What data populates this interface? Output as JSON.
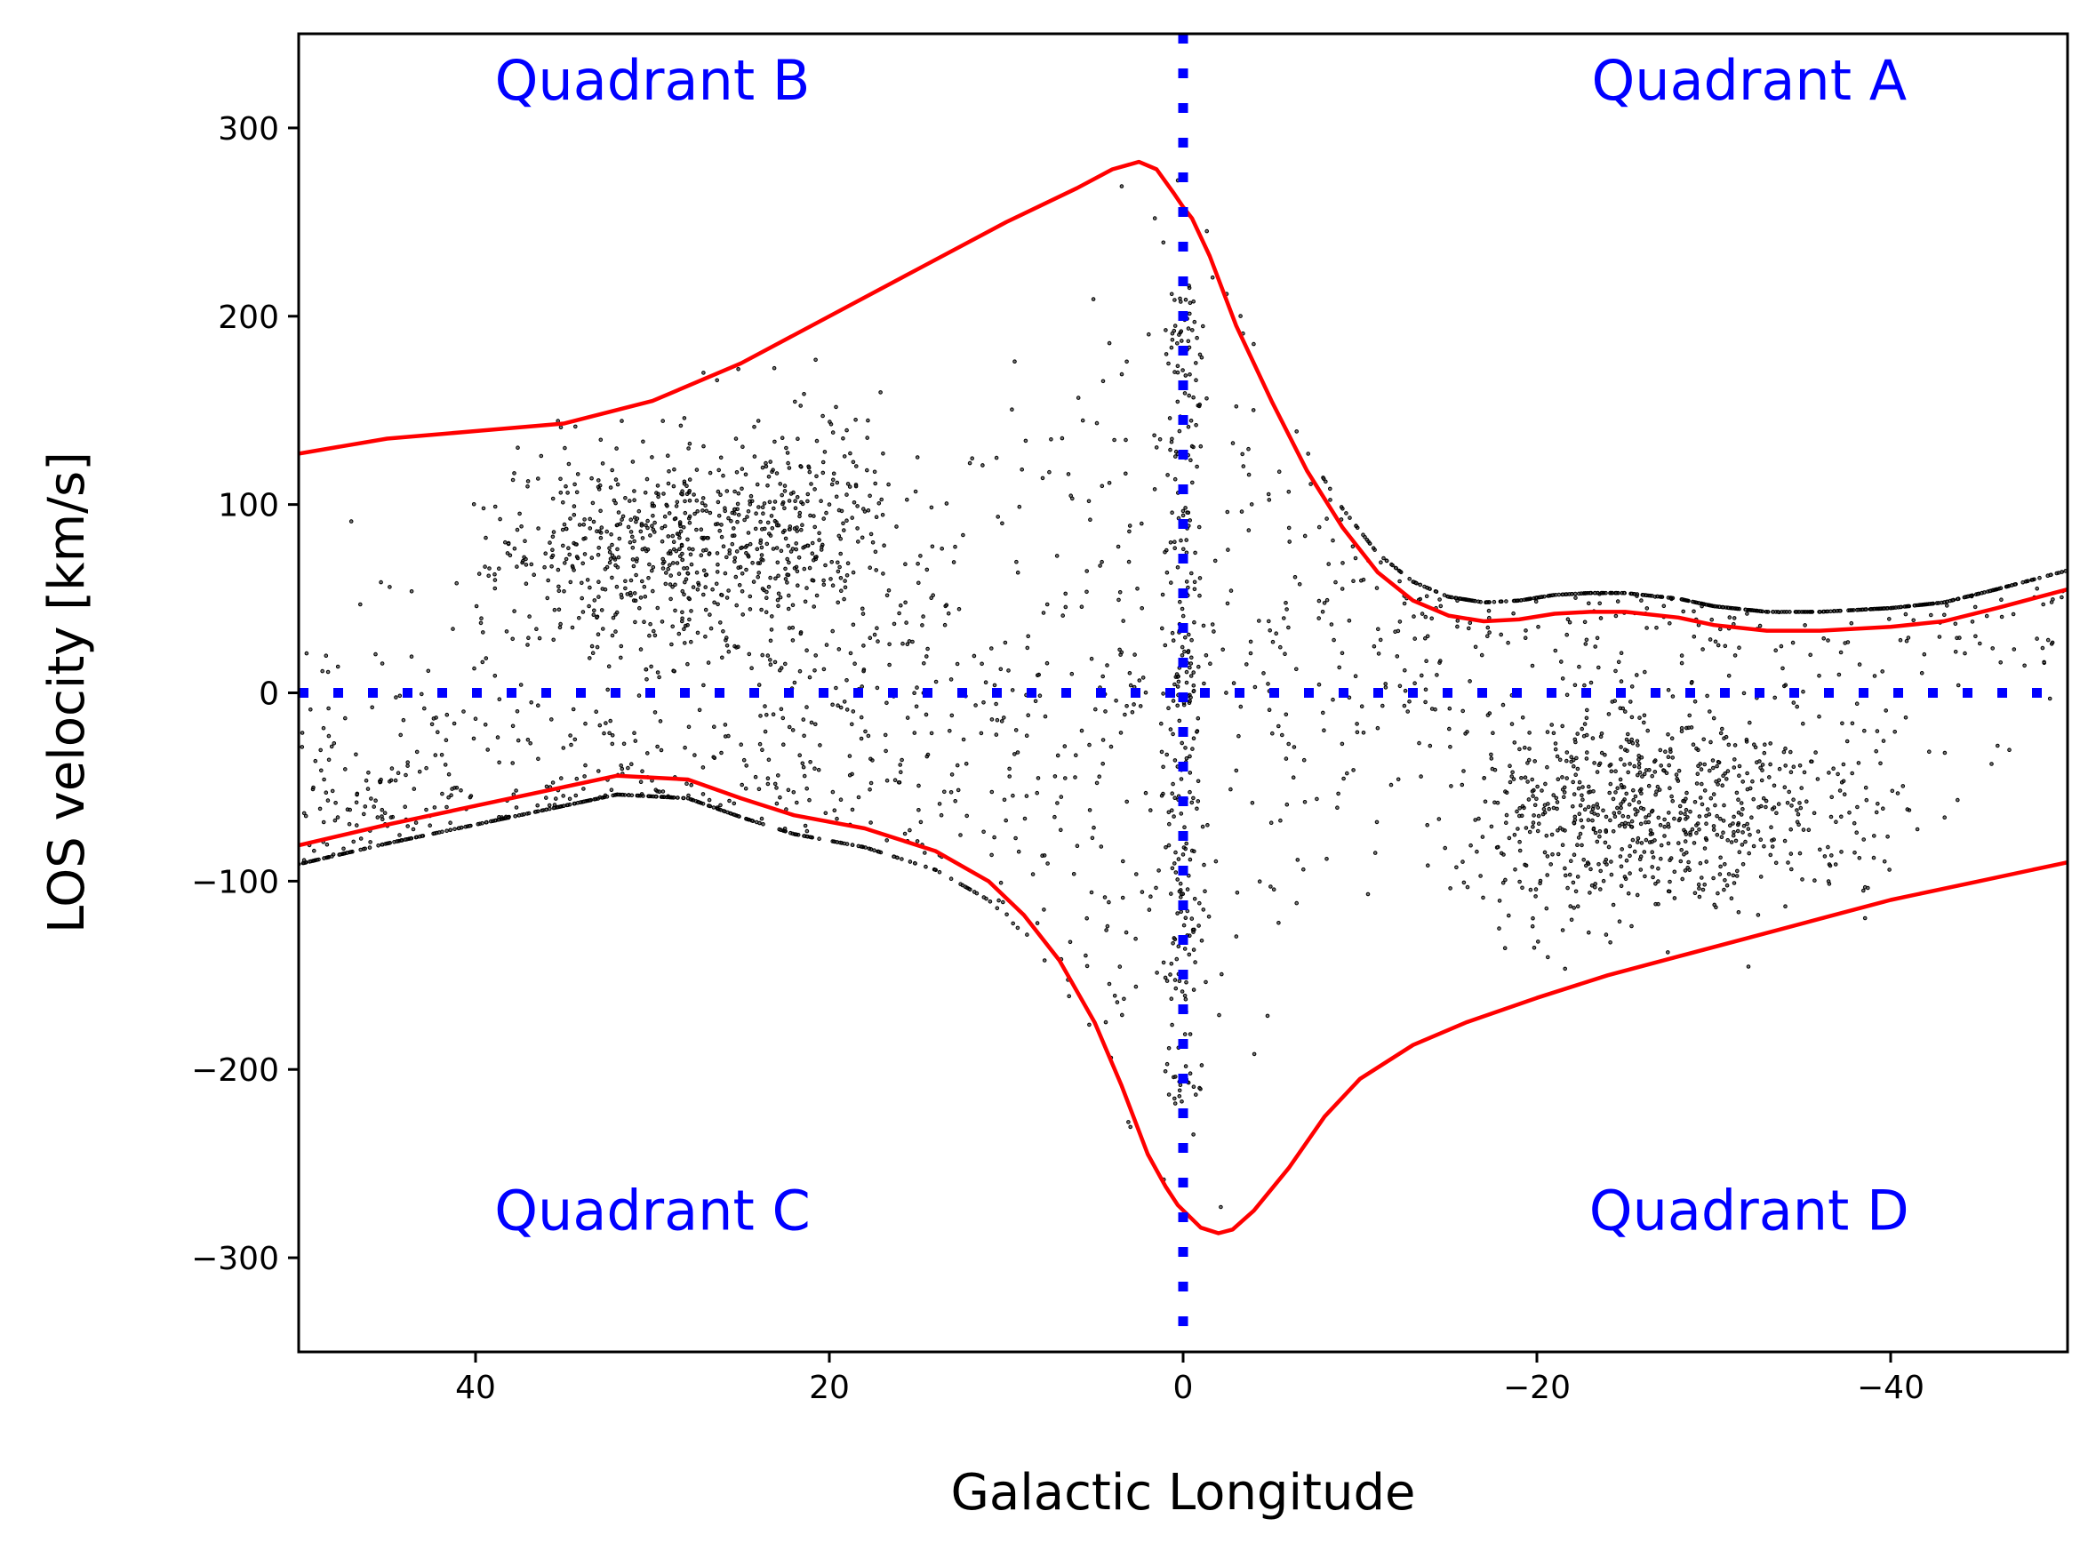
{
  "chart_data": {
    "type": "scatter",
    "title": "",
    "xlabel": "Galactic Longitude",
    "ylabel": "LOS velocity [km/s]",
    "xlim": [
      50,
      -50
    ],
    "ylim": [
      -350,
      350
    ],
    "x_ticks": [
      {
        "value": 40,
        "label": "40"
      },
      {
        "value": 20,
        "label": "20"
      },
      {
        "value": 0,
        "label": "0"
      },
      {
        "value": -20,
        "label": "−20"
      },
      {
        "value": -40,
        "label": "−40"
      }
    ],
    "y_ticks": [
      {
        "value": 300,
        "label": "300"
      },
      {
        "value": 200,
        "label": "200"
      },
      {
        "value": 100,
        "label": "100"
      },
      {
        "value": 0,
        "label": "0"
      },
      {
        "value": -100,
        "label": "−100"
      },
      {
        "value": -200,
        "label": "−200"
      },
      {
        "value": -300,
        "label": "−300"
      }
    ],
    "grid": false,
    "annotations": [
      {
        "text": "Quadrant B",
        "x": 30,
        "y": 315
      },
      {
        "text": "Quadrant A",
        "x": -32,
        "y": 315
      },
      {
        "text": "Quadrant C",
        "x": 30,
        "y": -285
      },
      {
        "text": "Quadrant D",
        "x": -32,
        "y": -285
      }
    ],
    "reference_lines": [
      {
        "name": "zero-velocity",
        "orientation": "horizontal",
        "value": 0,
        "color": "#0000ff",
        "style": "dotted"
      },
      {
        "name": "zero-longitude",
        "orientation": "vertical",
        "value": 0,
        "color": "#0000ff",
        "style": "dotted"
      }
    ],
    "envelope": {
      "color": "#ff0000",
      "upper": {
        "x": [
          50,
          45,
          40,
          35,
          30,
          25,
          20,
          15,
          10,
          6,
          4,
          2.5,
          1.5,
          0.5,
          0,
          -0.5,
          -1.5,
          -3,
          -5,
          -7,
          -9,
          -11,
          -13,
          -15,
          -17,
          -19,
          -21,
          -23,
          -25,
          -28,
          -30,
          -33,
          -36,
          -40,
          -43,
          -46,
          -50
        ],
        "y": [
          127,
          135,
          139,
          143,
          155,
          175,
          200,
          225,
          250,
          268,
          278,
          282,
          278,
          265,
          258,
          252,
          232,
          195,
          155,
          118,
          88,
          64,
          49,
          41,
          38,
          39,
          42,
          43,
          43,
          40,
          36,
          33,
          33,
          35,
          38,
          45,
          55
        ]
      },
      "lower": {
        "x": [
          50,
          45,
          40,
          35,
          32,
          28,
          25,
          22,
          18,
          14,
          11,
          9,
          7,
          5,
          3.5,
          2,
          1,
          0.3,
          -1,
          -2,
          -2.8,
          -4,
          -6,
          -8,
          -10,
          -13,
          -16,
          -20,
          -24,
          -28,
          -32,
          -36,
          -40,
          -45,
          -50
        ],
        "y": [
          -81,
          -70,
          -60,
          -50,
          -44,
          -46,
          -56,
          -65,
          -72,
          -84,
          -100,
          -118,
          -142,
          -175,
          -208,
          -245,
          -262,
          -272,
          -284,
          -287,
          -285,
          -275,
          -252,
          -225,
          -205,
          -187,
          -175,
          -162,
          -150,
          -140,
          -130,
          -120,
          -110,
          -100,
          -90
        ]
      }
    },
    "scatter_points": {
      "description": "stellar line-of-sight velocities",
      "count": 14500,
      "color": "#000000",
      "centers_note": "dense clumps near (30, 80), (22, 90), (-22, -70), (-30, -60)"
    },
    "colors": {
      "envelope": "#ff0000",
      "reference": "#0000ff",
      "quadrant_labels": "#0000ff",
      "points": "#000000"
    }
  }
}
